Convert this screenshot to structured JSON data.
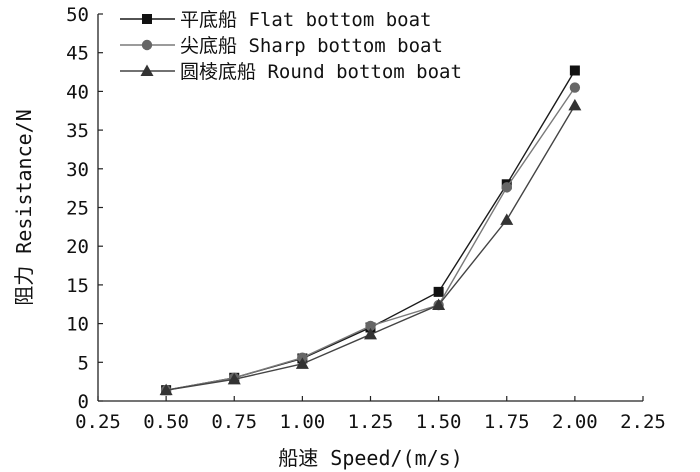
{
  "chart_data": {
    "type": "line",
    "title": "",
    "xlabel": "船速 Speed/(m/s)",
    "ylabel": "阻力 Resistance/N",
    "xlim": [
      0.25,
      2.25
    ],
    "ylim": [
      0,
      50
    ],
    "x_ticks": [
      "0.25",
      "0.50",
      "0.75",
      "1.00",
      "1.25",
      "1.50",
      "1.75",
      "2.00",
      "2.25"
    ],
    "y_ticks": [
      "0",
      "5",
      "10",
      "15",
      "20",
      "25",
      "30",
      "35",
      "40",
      "45",
      "50"
    ],
    "grid": false,
    "legend_position": "top-left",
    "x": [
      0.5,
      0.75,
      1.0,
      1.25,
      1.5,
      1.75,
      2.0
    ],
    "series": [
      {
        "name": "平底船 Flat bottom boat",
        "marker": "square",
        "color": "#111111",
        "line_color": "#1a1a1a",
        "values": [
          1.4,
          3.0,
          5.5,
          9.5,
          14.1,
          28.0,
          42.7
        ]
      },
      {
        "name": "尖底船 Sharp bottom boat",
        "marker": "circle",
        "color": "#666666",
        "line_color": "#7a7a7a",
        "values": [
          1.4,
          3.0,
          5.6,
          9.7,
          12.4,
          27.6,
          40.5
        ]
      },
      {
        "name": "圆棱底船 Round bottom boat",
        "marker": "triangle",
        "color": "#333333",
        "line_color": "#444444",
        "values": [
          1.4,
          2.8,
          4.8,
          8.6,
          12.4,
          23.4,
          38.2
        ]
      }
    ]
  }
}
